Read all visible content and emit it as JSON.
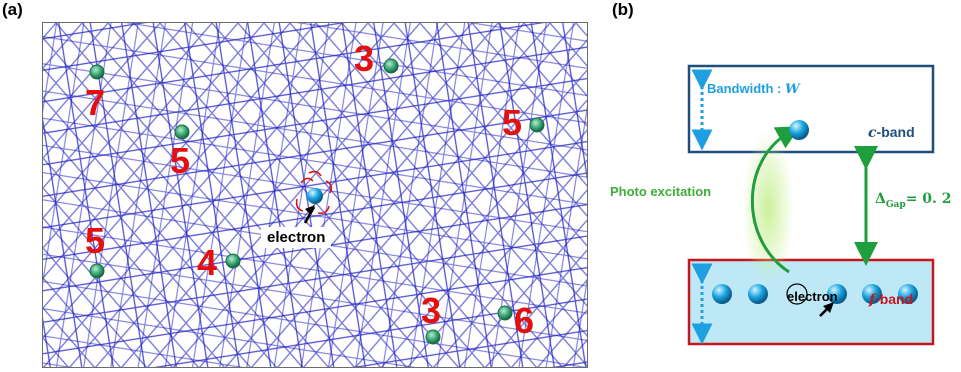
{
  "panel_a": {
    "label": "(a)",
    "vertex_numbers": [
      "3",
      "7",
      "5",
      "5",
      "5",
      "4",
      "3",
      "6"
    ],
    "electron_label": "electron"
  },
  "panel_b": {
    "label": "(b)",
    "bandwidth_label": "Bandwidth : ",
    "bandwidth_symbol": "W",
    "c_band_italic": "c",
    "c_band_suffix": "-band",
    "f_band_italic": "f",
    "f_band_suffix": "-band",
    "photo_excitation": "Photo excitation",
    "gap_delta": "Δ",
    "gap_subscript": "Gap",
    "gap_equals": "= 0. 2",
    "electron_label": "electron"
  },
  "colors": {
    "tiling": "#1a1ac0",
    "number_red": "#e41010",
    "site_green": "#3aa876",
    "electron_blue": "#1aa7e0",
    "c_band_border": "#1e4e7c",
    "f_band_border": "#c8151b",
    "f_band_fill": "#bfe8f6",
    "arrow_green": "#1e9e3c",
    "bandwidth_cyan": "#1e9fe0"
  }
}
